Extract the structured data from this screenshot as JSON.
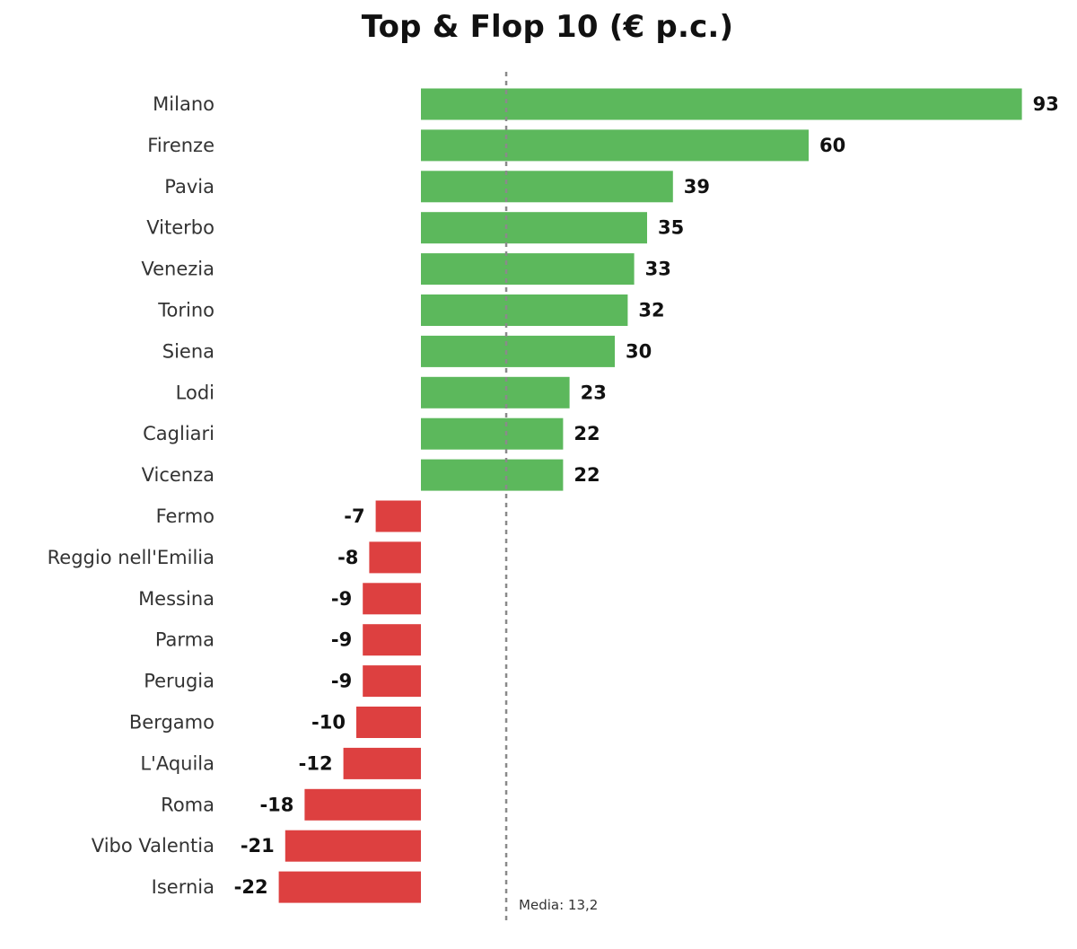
{
  "colors": {
    "positive": "#5cb85c",
    "negative": "#dd4040",
    "reference_line": "#8a8a8a"
  },
  "chart_data": {
    "type": "bar",
    "orientation": "horizontal",
    "title": "Top & Flop 10 (€ p.c.)",
    "categories": [
      "Milano",
      "Firenze",
      "Pavia",
      "Viterbo",
      "Venezia",
      "Torino",
      "Siena",
      "Lodi",
      "Cagliari",
      "Vicenza",
      "Fermo",
      "Reggio nell'Emilia",
      "Messina",
      "Parma",
      "Perugia",
      "Bergamo",
      "L'Aquila",
      "Roma",
      "Vibo Valentia",
      "Isernia"
    ],
    "values": [
      93,
      60,
      39,
      35,
      33,
      32,
      30,
      23,
      22,
      22,
      -7,
      -8,
      -9,
      -9,
      -9,
      -10,
      -12,
      -18,
      -21,
      -22
    ],
    "xlim": [
      -22,
      93
    ],
    "grid": false,
    "legend": "none",
    "reference_line": {
      "value": 13.2,
      "label": "Media: 13,2"
    }
  }
}
